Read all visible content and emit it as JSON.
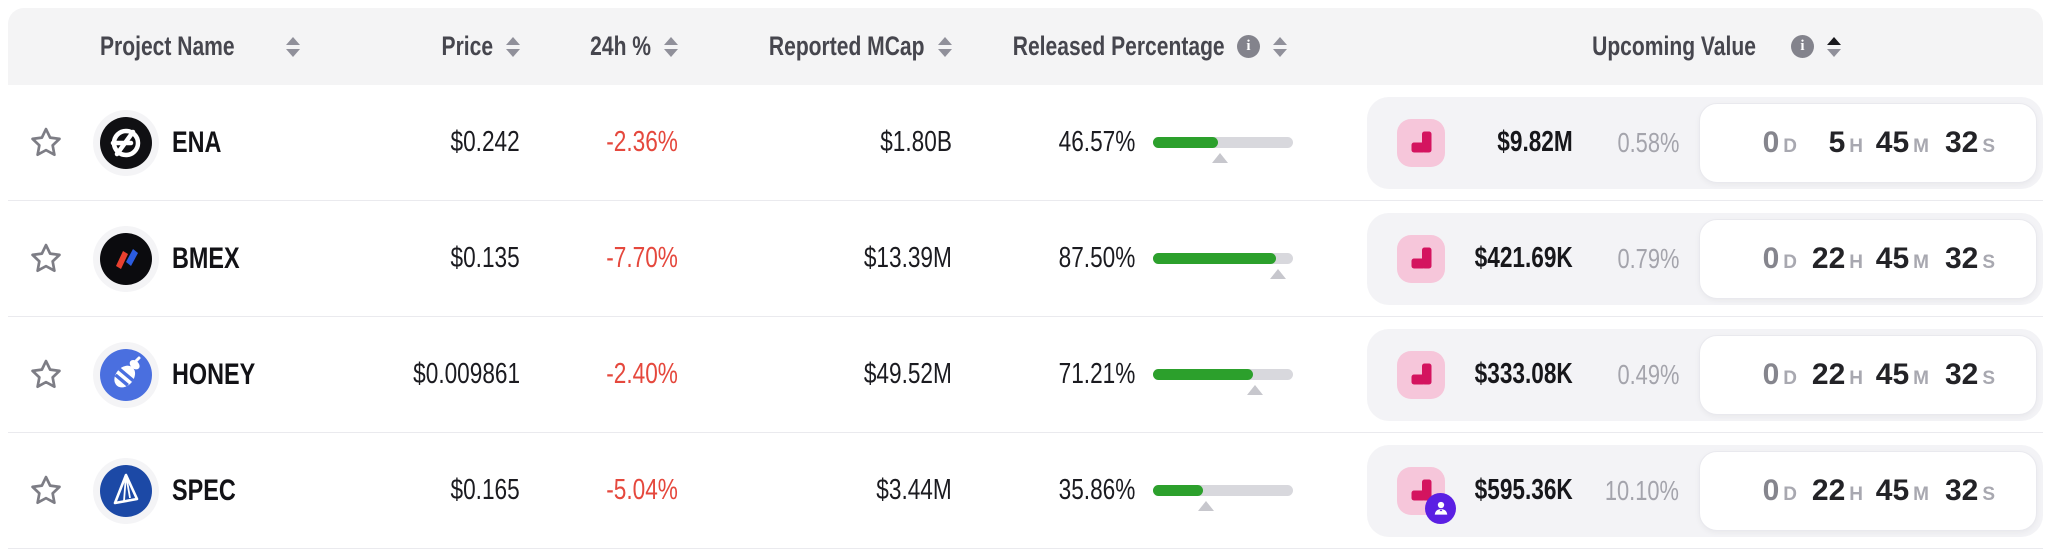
{
  "colors": {
    "negative_change": "#e5483d",
    "progress_green": "#2ca02c",
    "progress_track": "#d8d8dd",
    "cliff_icon_bg": "#f6c6da",
    "cliff_icon_fg": "#d4145f",
    "insider_badge": "#5b1fe3",
    "header_bg": "#f4f4f5",
    "group_bg": "#f3f3f6"
  },
  "header": {
    "cols": [
      {
        "label": "Project Name",
        "sort": "none",
        "info": false
      },
      {
        "label": "Price",
        "sort": "none",
        "info": false
      },
      {
        "label": "24h %",
        "sort": "none",
        "info": false
      },
      {
        "label": "Reported MCap",
        "sort": "none",
        "info": false
      },
      {
        "label": "Released Percentage",
        "sort": "none",
        "info": true
      },
      {
        "label": "Upcoming Value",
        "sort": "asc",
        "info": true
      }
    ]
  },
  "rows": [
    {
      "token": {
        "symbol": "ENA",
        "logo": "ena"
      },
      "price": "$0.242",
      "change_24h": "-2.36%",
      "reported_mcap": "$1.80B",
      "released": {
        "label": "46.57%",
        "percent": 46.57,
        "marker": 48
      },
      "upcoming": {
        "icon": "cliff-unlock",
        "badge": null,
        "value": "$9.82M",
        "percent": "0.58%"
      },
      "countdown": {
        "d": {
          "v": "0",
          "u": "D",
          "dim": true
        },
        "h": {
          "v": "5",
          "u": "H"
        },
        "m": {
          "v": "45",
          "u": "M"
        },
        "s": {
          "v": "32",
          "u": "S"
        }
      }
    },
    {
      "token": {
        "symbol": "BMEX",
        "logo": "bmex"
      },
      "price": "$0.135",
      "change_24h": "-7.70%",
      "reported_mcap": "$13.39M",
      "released": {
        "label": "87.50%",
        "percent": 87.5,
        "marker": 89
      },
      "upcoming": {
        "icon": "cliff-unlock",
        "badge": null,
        "value": "$421.69K",
        "percent": "0.79%"
      },
      "countdown": {
        "d": {
          "v": "0",
          "u": "D",
          "dim": true
        },
        "h": {
          "v": "22",
          "u": "H"
        },
        "m": {
          "v": "45",
          "u": "M"
        },
        "s": {
          "v": "32",
          "u": "S"
        }
      }
    },
    {
      "token": {
        "symbol": "HONEY",
        "logo": "honey"
      },
      "price": "$0.009861",
      "change_24h": "-2.40%",
      "reported_mcap": "$49.52M",
      "released": {
        "label": "71.21%",
        "percent": 71.21,
        "marker": 72.5
      },
      "upcoming": {
        "icon": "cliff-unlock",
        "badge": null,
        "value": "$333.08K",
        "percent": "0.49%"
      },
      "countdown": {
        "d": {
          "v": "0",
          "u": "D",
          "dim": true
        },
        "h": {
          "v": "22",
          "u": "H"
        },
        "m": {
          "v": "45",
          "u": "M"
        },
        "s": {
          "v": "32",
          "u": "S"
        }
      }
    },
    {
      "token": {
        "symbol": "SPEC",
        "logo": "spec"
      },
      "price": "$0.165",
      "change_24h": "-5.04%",
      "reported_mcap": "$3.44M",
      "released": {
        "label": "35.86%",
        "percent": 35.86,
        "marker": 37.5
      },
      "upcoming": {
        "icon": "cliff-unlock",
        "badge": "insider",
        "value": "$595.36K",
        "percent": "10.10%"
      },
      "countdown": {
        "d": {
          "v": "0",
          "u": "D",
          "dim": true
        },
        "h": {
          "v": "22",
          "u": "H"
        },
        "m": {
          "v": "45",
          "u": "M"
        },
        "s": {
          "v": "32",
          "u": "S"
        }
      }
    }
  ]
}
